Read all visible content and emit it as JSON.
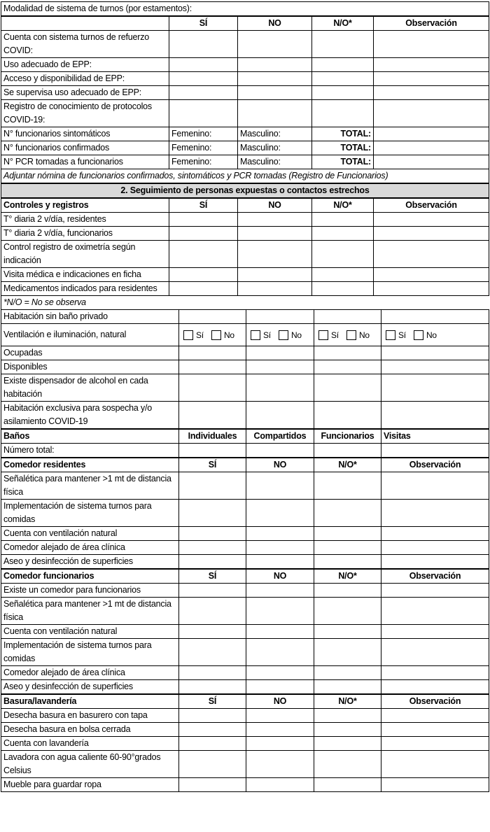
{
  "table_a": {
    "rows": [
      {
        "type": "full",
        "label": "Modalidad de sistema de turnos (por estamentos):"
      },
      {
        "type": "header",
        "cells": [
          "",
          "SÍ",
          "NO",
          "N/O*",
          "Observación"
        ]
      },
      {
        "type": "data",
        "label": "Cuenta con sistema turnos de refuerzo COVID:"
      },
      {
        "type": "data",
        "label": "Uso adecuado de EPP:"
      },
      {
        "type": "data",
        "label": "Acceso y disponibilidad de EPP:"
      },
      {
        "type": "data",
        "label": "Se supervisa uso adecuado de EPP:"
      },
      {
        "type": "data",
        "label": "Registro de conocimiento de protocolos COVID-19:"
      },
      {
        "type": "counts",
        "label": "N° funcionarios sintomáticos",
        "f": "Femenino:",
        "m": "Masculino:",
        "t": "TOTAL:"
      },
      {
        "type": "counts",
        "label": "N° funcionarios confirmados",
        "f": "Femenino:",
        "m": "Masculino:",
        "t": "TOTAL:"
      },
      {
        "type": "counts",
        "label": "N° PCR tomadas a funcionarios",
        "f": "Femenino:",
        "m": "Masculino:",
        "t": "TOTAL:"
      },
      {
        "type": "italic",
        "label": "Adjuntar nómina de funcionarios confirmados, sintomáticos y PCR tomadas (Registro de Funcionarios)"
      },
      {
        "type": "section",
        "label": "2. Seguimiento de personas expuestas o contactos estrechos"
      },
      {
        "type": "header",
        "cells": [
          "Controles y registros",
          "SÍ",
          "NO",
          "N/O*",
          "Observación"
        ]
      },
      {
        "type": "data",
        "label": "T° diaria 2 v/día, residentes"
      },
      {
        "type": "data",
        "label": "T° diaria 2 v/día, funcionarios"
      },
      {
        "type": "data",
        "label": "Control registro de oximetría según indicación"
      },
      {
        "type": "data",
        "label": "Visita médica e indicaciones en ficha"
      },
      {
        "type": "data",
        "label": "Medicamentos indicados para residentes"
      },
      {
        "type": "note",
        "label": "*N/O = No se observa"
      }
    ]
  },
  "table_b": {
    "rows": [
      {
        "type": "data",
        "label": "Habitación sin baño privado"
      },
      {
        "type": "checks",
        "label": "Ventilación e iluminación, natural",
        "yes": "Sí",
        "no": "No"
      },
      {
        "type": "data",
        "label": "Ocupadas"
      },
      {
        "type": "data",
        "label": "Disponibles"
      },
      {
        "type": "data",
        "label": "Existe dispensador de alcohol en cada habitación"
      },
      {
        "type": "data",
        "label": "Habitación exclusiva para sospecha y/o asilamiento COVID-19"
      },
      {
        "type": "header",
        "plain": true,
        "cells": [
          "Baños",
          "Individuales",
          "Compartidos",
          "Funcionarios",
          "Visitas"
        ]
      },
      {
        "type": "data",
        "label": " Número total:"
      },
      {
        "type": "header",
        "cells": [
          "Comedor residentes",
          "SÍ",
          "NO",
          "N/O*",
          "Observación"
        ]
      },
      {
        "type": "data",
        "label": "Señalética para mantener >1 mt de distancia física"
      },
      {
        "type": "data",
        "label": "Implementación de sistema turnos para comidas"
      },
      {
        "type": "data",
        "label": "Cuenta con ventilación natural"
      },
      {
        "type": "data",
        "label": "Comedor alejado de área clínica"
      },
      {
        "type": "data",
        "label": "Aseo y desinfección de superficies"
      },
      {
        "type": "header",
        "cells": [
          "Comedor funcionarios",
          "SÍ",
          "NO",
          "N/O*",
          "Observación"
        ]
      },
      {
        "type": "data",
        "label": "Existe un comedor para funcionarios"
      },
      {
        "type": "data",
        "label": "Señalética para mantener >1 mt de distancia física"
      },
      {
        "type": "data",
        "label": "Cuenta con ventilación natural"
      },
      {
        "type": "data",
        "label": "Implementación de sistema turnos para comidas"
      },
      {
        "type": "data",
        "label": "Comedor alejado de área clínica"
      },
      {
        "type": "data",
        "label": "Aseo y desinfección de superficies"
      },
      {
        "type": "header",
        "cells": [
          "Basura/lavandería",
          "SÍ",
          "NO",
          "N/O*",
          "Observación"
        ]
      },
      {
        "type": "data",
        "label": "Desecha basura en basurero con tapa"
      },
      {
        "type": "data",
        "label": "Desecha basura en bolsa cerrada"
      },
      {
        "type": "data",
        "label": "Cuenta con lavandería"
      },
      {
        "type": "data",
        "label": "Lavadora con agua caliente 60-90°grados Celsius"
      },
      {
        "type": "data",
        "label": "Mueble para guardar ropa"
      }
    ]
  },
  "colors": {
    "section_bg": "#d9d9d9",
    "border": "#000000"
  }
}
